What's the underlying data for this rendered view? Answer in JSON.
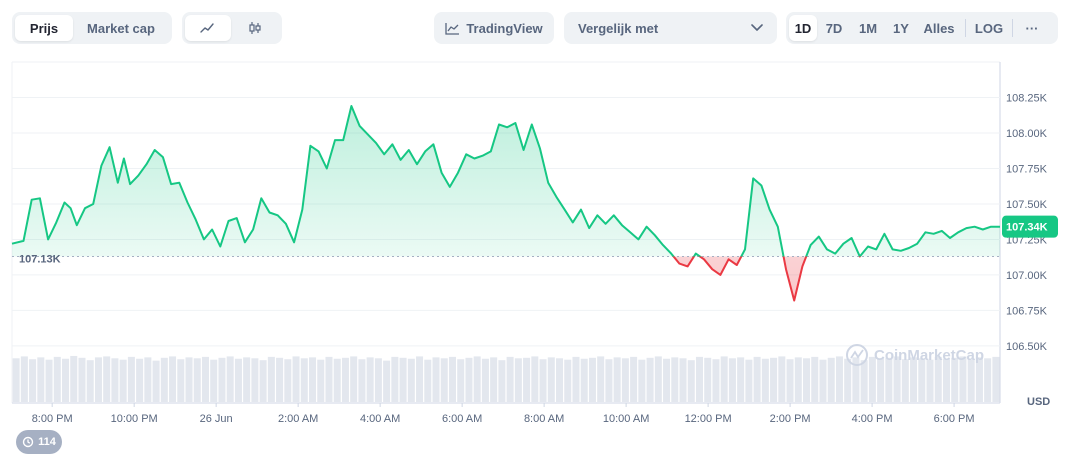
{
  "toolbar": {
    "tabs": [
      {
        "label": "Prijs",
        "active": true
      },
      {
        "label": "Market cap",
        "active": false
      }
    ],
    "chart_styles": [
      {
        "icon": "line-chart-icon",
        "active": true
      },
      {
        "icon": "candlestick-icon",
        "active": false
      }
    ],
    "tradingview_label": "TradingView",
    "compare_label": "Vergelijk met",
    "ranges": [
      "1D",
      "7D",
      "1M",
      "1Y",
      "Alles"
    ],
    "active_range": "1D",
    "log_label": "LOG",
    "more_label": "···"
  },
  "watermark": "CoinMarketCap",
  "currency_label": "USD",
  "history_badge": "114",
  "colors": {
    "up": "#16c784",
    "down": "#ea3943",
    "accent": "#16c784"
  },
  "chart_data": {
    "type": "area",
    "title": "",
    "ylabel": "",
    "xlabel": "",
    "reference_value": 107130,
    "reference_label": "107.13K",
    "current_value": 107340,
    "current_label": "107.34K",
    "ylim": [
      106450,
      108500
    ],
    "y_ticks": [
      106500,
      106750,
      107000,
      107250,
      107500,
      107750,
      108000,
      108250
    ],
    "y_tick_labels": [
      "106.50K",
      "106.75K",
      "107.00K",
      "107.25K",
      "107.50K",
      "107.75K",
      "108.00K",
      "108.25K"
    ],
    "x_ticks": [
      0,
      2,
      4,
      6,
      8,
      10,
      12,
      14,
      16,
      18,
      20,
      22
    ],
    "x_tick_labels": [
      "8:00 PM",
      "10:00 PM",
      "26 Jun",
      "2:00 AM",
      "4:00 AM",
      "6:00 AM",
      "8:00 AM",
      "10:00 AM",
      "12:00 PM",
      "2:00 PM",
      "4:00 PM",
      "6:00 PM"
    ],
    "xlim": [
      -0.98,
      23.12
    ],
    "x_unit": "hours after 8:00 PM",
    "series": [
      {
        "x": [
          -0.98,
          -0.7,
          -0.5,
          -0.3,
          -0.1,
          0.1,
          0.3,
          0.45,
          0.6,
          0.8,
          1.0,
          1.2,
          1.4,
          1.6,
          1.75,
          1.9,
          2.1,
          2.3,
          2.5,
          2.7,
          2.9,
          3.1,
          3.3,
          3.5,
          3.7,
          3.9,
          4.1,
          4.3,
          4.5,
          4.7,
          4.9,
          5.1,
          5.3,
          5.5,
          5.7,
          5.9,
          6.1,
          6.3,
          6.5,
          6.7,
          6.9,
          7.1,
          7.3,
          7.5,
          7.7,
          7.9,
          8.1,
          8.3,
          8.5,
          8.7,
          8.9,
          9.1,
          9.3,
          9.5,
          9.7,
          9.9,
          10.1,
          10.3,
          10.5,
          10.7,
          10.9,
          11.1,
          11.3,
          11.5,
          11.7,
          11.9,
          12.1,
          12.3,
          12.5,
          12.7,
          12.9,
          13.1,
          13.3,
          13.5,
          13.7,
          13.9,
          14.1,
          14.3,
          14.5,
          14.7,
          14.9,
          15.1,
          15.3,
          15.5,
          15.7,
          15.9,
          16.1,
          16.3,
          16.5,
          16.7,
          16.9,
          17.1,
          17.3,
          17.5,
          17.7,
          17.9,
          18.1,
          18.3,
          18.5,
          18.7,
          18.9,
          19.1,
          19.3,
          19.5,
          19.7,
          19.9,
          20.1,
          20.3,
          20.5,
          20.7,
          20.9,
          21.1,
          21.3,
          21.5,
          21.7,
          21.9,
          22.1,
          22.3,
          22.5,
          22.7,
          22.9,
          23.12
        ],
        "y": [
          107220,
          107240,
          107530,
          107540,
          107250,
          107370,
          107510,
          107470,
          107350,
          107470,
          107500,
          107770,
          107900,
          107650,
          107820,
          107640,
          107700,
          107780,
          107880,
          107830,
          107640,
          107650,
          107510,
          107390,
          107250,
          107320,
          107200,
          107380,
          107400,
          107230,
          107320,
          107540,
          107440,
          107420,
          107360,
          107230,
          107460,
          107910,
          107870,
          107750,
          107950,
          107950,
          108190,
          108050,
          107990,
          107930,
          107850,
          107920,
          107810,
          107880,
          107780,
          107870,
          107920,
          107720,
          107620,
          107720,
          107850,
          107820,
          107840,
          107870,
          108060,
          108040,
          108070,
          107880,
          108060,
          107890,
          107650,
          107550,
          107460,
          107370,
          107460,
          107330,
          107420,
          107360,
          107420,
          107350,
          107300,
          107250,
          107340,
          107280,
          107210,
          107150,
          107080,
          107060,
          107150,
          107110,
          107040,
          107000,
          107110,
          107070,
          107180,
          107680,
          107630,
          107460,
          107340,
          107040,
          106820,
          107060,
          107210,
          107270,
          107180,
          107150,
          107220,
          107260,
          107130,
          107200,
          107180,
          107290,
          107180,
          107170,
          107190,
          107220,
          107300,
          107290,
          107310,
          107260,
          107300,
          107330,
          107340,
          107320,
          107340,
          107340
        ]
      }
    ],
    "volume": [
      0.93,
      0.97,
      0.91,
      0.95,
      0.9,
      0.96,
      0.92,
      0.98,
      0.94,
      0.89,
      0.95,
      0.97,
      0.93,
      0.9,
      0.96,
      0.92,
      0.95,
      0.88,
      0.94,
      0.97,
      0.91,
      0.95,
      0.93,
      0.96,
      0.9,
      0.94,
      0.97,
      0.92,
      0.95,
      0.93,
      0.89,
      0.96,
      0.94,
      0.91,
      0.97,
      0.93,
      0.95,
      0.9,
      0.96,
      0.92,
      0.94,
      0.97,
      0.91,
      0.95,
      0.93,
      0.88,
      0.96,
      0.94,
      0.92,
      0.97,
      0.9,
      0.95,
      0.93,
      0.96,
      0.91,
      0.94,
      0.97,
      0.92,
      0.95,
      0.89,
      0.96,
      0.93,
      0.94,
      0.97,
      0.91,
      0.95,
      0.93,
      0.9,
      0.96,
      0.92,
      0.94,
      0.97,
      0.91,
      0.95,
      0.93,
      0.96,
      0.9,
      0.94,
      0.97,
      0.92,
      0.95,
      0.93,
      0.89,
      0.96,
      0.94,
      0.91,
      0.97,
      0.93,
      0.95,
      0.9,
      0.96,
      0.92,
      0.94,
      0.97,
      0.91,
      0.95,
      0.93,
      0.96,
      0.9,
      0.94,
      0.97,
      0.92,
      0.95,
      0.89,
      0.96,
      0.93,
      0.94,
      0.97,
      0.91,
      0.95,
      0.93,
      0.9,
      0.96,
      0.92,
      0.94,
      0.97,
      0.91,
      0.95,
      0.93,
      0.96
    ]
  }
}
